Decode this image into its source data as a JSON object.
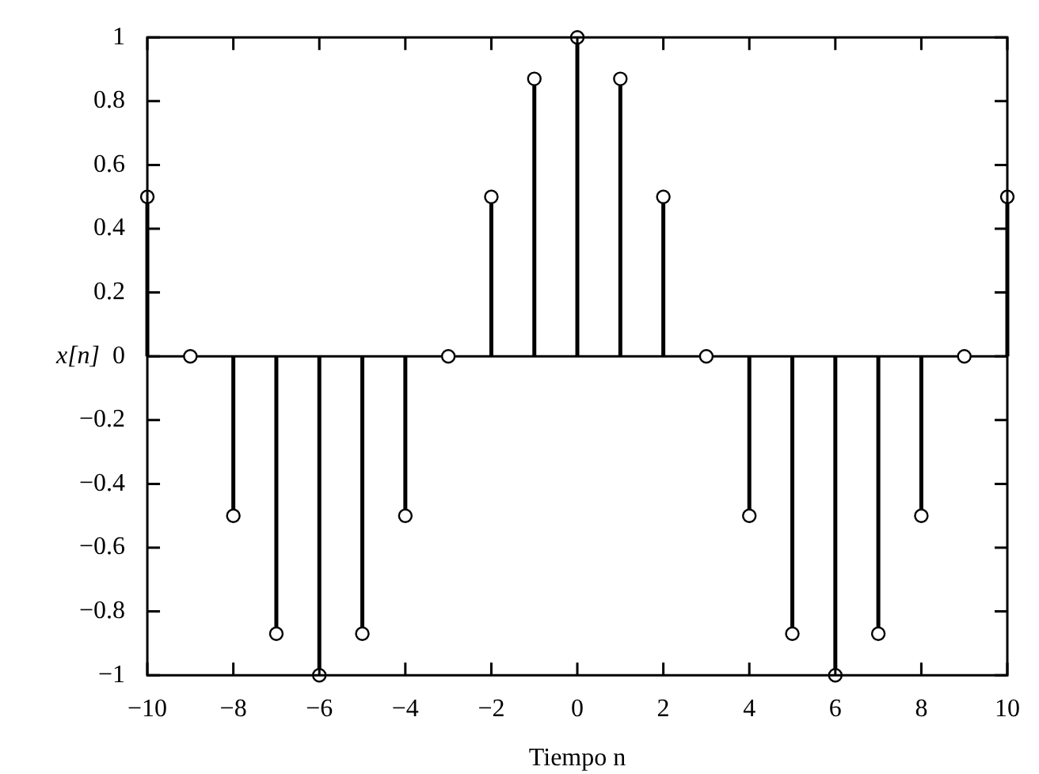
{
  "chart_data": {
    "type": "lollipop",
    "xlabel": "Tiempo n",
    "ylabel": "x[n]",
    "x": [
      -10,
      -9,
      -8,
      -7,
      -6,
      -5,
      -4,
      -3,
      -2,
      -1,
      0,
      1,
      2,
      3,
      4,
      5,
      6,
      7,
      8,
      9,
      10
    ],
    "values": [
      0.5,
      0,
      -0.5,
      -0.87,
      -1,
      -0.87,
      -0.5,
      0,
      0.5,
      0.87,
      1,
      0.87,
      0.5,
      0,
      -0.5,
      -0.87,
      -1,
      -0.87,
      -0.5,
      0,
      0.5
    ],
    "color": "#000000",
    "marker": "circle",
    "grid": false,
    "ref_lines": [
      {
        "axis": "y",
        "value": 0
      }
    ],
    "xlim": [
      -10,
      10
    ],
    "xticks": [
      -10,
      -8,
      -6,
      -4,
      -2,
      0,
      2,
      4,
      6,
      8,
      10
    ],
    "ylim": [
      -1,
      1
    ],
    "yticks": [
      -1,
      -0.8,
      -0.6,
      -0.4,
      -0.2,
      0,
      0.2,
      0.4,
      0.6,
      0.8,
      1
    ]
  }
}
